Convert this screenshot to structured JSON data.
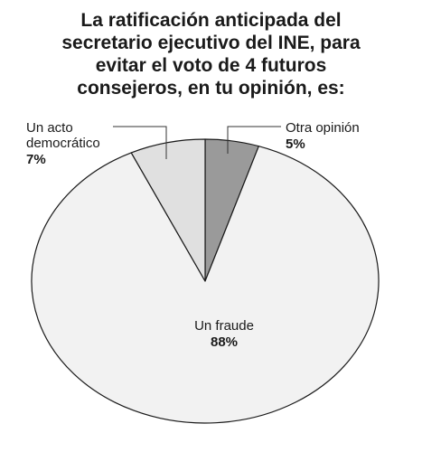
{
  "chart_data": {
    "type": "pie",
    "title_lines": [
      "La ratificación anticipada del",
      "secretario ejecutivo del INE, para",
      "evitar el voto de 4 futuros",
      "consejeros, en tu opinión, es:"
    ],
    "slices": [
      {
        "label_lines": [
          "Otra opinión"
        ],
        "value": 5,
        "value_label": "5%",
        "color": "#9a9a9a"
      },
      {
        "label_lines": [
          "Un fraude"
        ],
        "value": 88,
        "value_label": "88%",
        "color": "#f2f2f2"
      },
      {
        "label_lines": [
          "Un acto",
          "democrático"
        ],
        "value": 7,
        "value_label": "7%",
        "color": "#e0e0e0"
      }
    ],
    "start_angle_deg": 0,
    "direction": "clockwise",
    "legend": "none",
    "label_placement": "callouts for small slices, inside for largest slice"
  }
}
